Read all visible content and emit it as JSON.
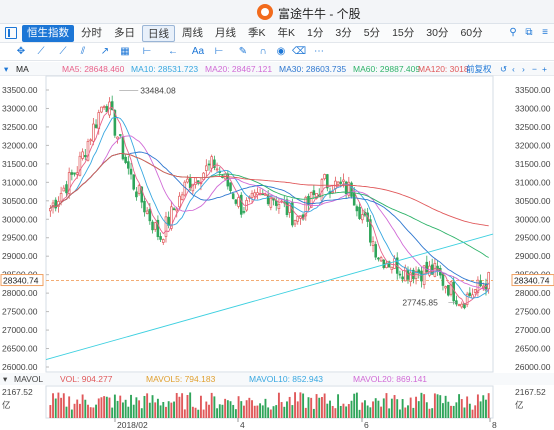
{
  "window": {
    "title": "富途牛牛 - 个股"
  },
  "tabs": [
    {
      "label": "恒生指数",
      "state": "active"
    },
    {
      "label": "分时",
      "state": ""
    },
    {
      "label": "多日",
      "state": ""
    },
    {
      "label": "日线",
      "state": "selected"
    },
    {
      "label": "周线",
      "state": ""
    },
    {
      "label": "月线",
      "state": ""
    },
    {
      "label": "季K",
      "state": ""
    },
    {
      "label": "年K",
      "state": ""
    },
    {
      "label": "1分",
      "state": ""
    },
    {
      "label": "3分",
      "state": ""
    },
    {
      "label": "5分",
      "state": ""
    },
    {
      "label": "15分",
      "state": ""
    },
    {
      "label": "30分",
      "state": ""
    },
    {
      "label": "60分",
      "state": ""
    }
  ],
  "toolbar": {
    "aa_label": "Aa"
  },
  "ma": {
    "title": "MA",
    "items": [
      {
        "label": "MA5: 28648.460",
        "color": "#e8628a"
      },
      {
        "label": "MA10: 28531.723",
        "color": "#37a7e0"
      },
      {
        "label": "MA20: 28467.121",
        "color": "#d16bd6"
      },
      {
        "label": "MA30: 28603.735",
        "color": "#2e77d0"
      },
      {
        "label": "MA60: 29887.409",
        "color": "#2fb36a"
      },
      {
        "label": "MA120: 3018",
        "color": "#e0585a"
      }
    ],
    "restore_label": "前复权"
  },
  "price_axis": {
    "ticks": [
      "33500.00",
      "33000.00",
      "32500.00",
      "32000.00",
      "31500.00",
      "31000.00",
      "30500.00",
      "30000.00",
      "29500.00",
      "29000.00",
      "28500.00",
      "28000.00",
      "27500.00",
      "27000.00",
      "26500.00",
      "26000.00"
    ],
    "current": "28340.74"
  },
  "annotations": {
    "high": "33484.08",
    "low": "27745.85"
  },
  "volume": {
    "title": "MAVOL",
    "items": [
      {
        "label": "VOL: 904.277",
        "color": "#e0585a"
      },
      {
        "label": "MAVOL5: 794.183",
        "color": "#e0a030"
      },
      {
        "label": "MAVOL10: 852.943",
        "color": "#37a7e0"
      },
      {
        "label": "MAVOL20: 869.141",
        "color": "#d16bd6"
      }
    ],
    "max_left": "2167.52",
    "max_right": "2167.52",
    "unit": "亿"
  },
  "dates": [
    "2018/02",
    "4",
    "6",
    "8"
  ],
  "colors": {
    "up": "#e0585a",
    "down": "#2fa55a",
    "accent": "#1c76d6"
  },
  "chart_data": {
    "type": "candlestick",
    "ylim": [
      26000,
      33500
    ],
    "current_price": 28340.74,
    "high": 33484.08,
    "low": 27745.85,
    "x_labels": [
      "2018/02",
      "4",
      "6",
      "8"
    ],
    "series_close_approx": [
      {
        "x": "2018/01/02",
        "y": 30300
      },
      {
        "x": "2018/01/15",
        "y": 31400
      },
      {
        "x": "2018/01/26",
        "y": 33300
      },
      {
        "x": "2018/02/06",
        "y": 31000
      },
      {
        "x": "2018/02/09",
        "y": 29500
      },
      {
        "x": "2018/02/27",
        "y": 31000
      },
      {
        "x": "2018/03/15",
        "y": 31500
      },
      {
        "x": "2018/03/23",
        "y": 30300
      },
      {
        "x": "2018/04/10",
        "y": 30700
      },
      {
        "x": "2018/05/02",
        "y": 30000
      },
      {
        "x": "2018/05/15",
        "y": 31000
      },
      {
        "x": "2018/06/05",
        "y": 30800
      },
      {
        "x": "2018/06/25",
        "y": 29000
      },
      {
        "x": "2018/07/10",
        "y": 28600
      },
      {
        "x": "2018/07/31",
        "y": 28600
      },
      {
        "x": "2018/08/15",
        "y": 27800
      },
      {
        "x": "2018/08/22",
        "y": 28340.74
      }
    ]
  }
}
